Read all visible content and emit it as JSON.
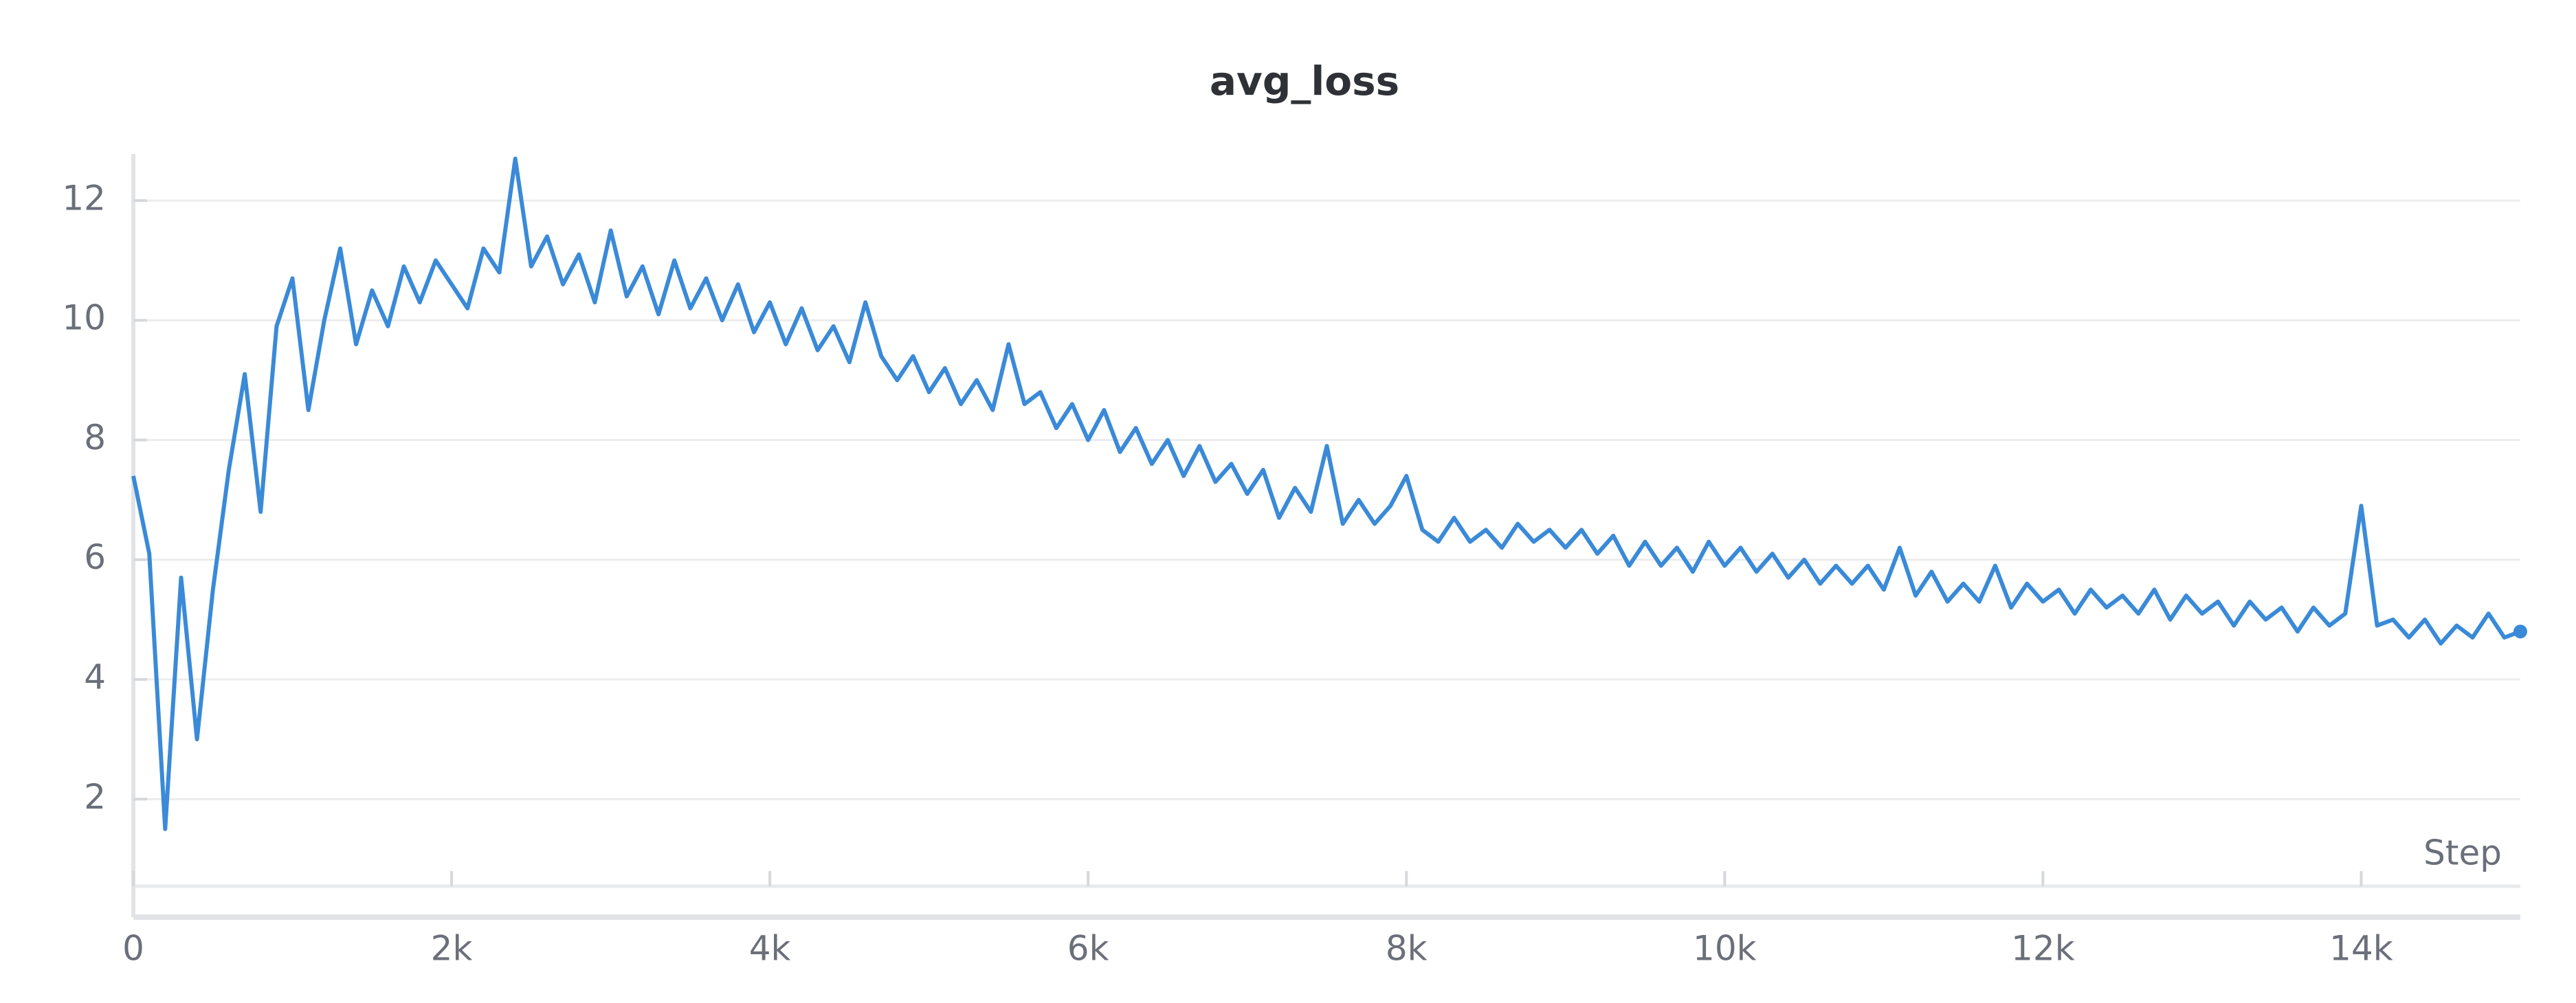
{
  "chart_data": {
    "type": "line",
    "title": "avg_loss",
    "x_label": "Step",
    "x": [
      0,
      100,
      200,
      300,
      400,
      500,
      600,
      700,
      800,
      900,
      1000,
      1100,
      1200,
      1300,
      1400,
      1500,
      1600,
      1700,
      1800,
      1900,
      2000,
      2100,
      2200,
      2300,
      2400,
      2500,
      2600,
      2700,
      2800,
      2900,
      3000,
      3100,
      3200,
      3300,
      3400,
      3500,
      3600,
      3700,
      3800,
      3900,
      4000,
      4100,
      4200,
      4300,
      4400,
      4500,
      4600,
      4700,
      4800,
      4900,
      5000,
      5100,
      5200,
      5300,
      5400,
      5500,
      5600,
      5700,
      5800,
      5900,
      6000,
      6100,
      6200,
      6300,
      6400,
      6500,
      6600,
      6700,
      6800,
      6900,
      7000,
      7100,
      7200,
      7300,
      7400,
      7500,
      7600,
      7700,
      7800,
      7900,
      8000,
      8100,
      8200,
      8300,
      8400,
      8500,
      8600,
      8700,
      8800,
      8900,
      9000,
      9100,
      9200,
      9300,
      9400,
      9500,
      9600,
      9700,
      9800,
      9900,
      10000,
      10100,
      10200,
      10300,
      10400,
      10500,
      10600,
      10700,
      10800,
      10900,
      11000,
      11100,
      11200,
      11300,
      11400,
      11500,
      11600,
      11700,
      11800,
      11900,
      12000,
      12100,
      12200,
      12300,
      12400,
      12500,
      12600,
      12700,
      12800,
      12900,
      13000,
      13100,
      13200,
      13300,
      13400,
      13500,
      13600,
      13700,
      13800,
      13900,
      14000,
      14100,
      14200,
      14300,
      14400,
      14500,
      14600,
      14700,
      14800,
      14900,
      15000
    ],
    "series": [
      {
        "name": "avg_loss",
        "color": "#3a8ad8",
        "values": [
          7.4,
          6.1,
          1.5,
          5.7,
          3.0,
          5.5,
          7.5,
          9.1,
          6.8,
          9.9,
          10.7,
          8.5,
          10.0,
          11.2,
          9.6,
          10.5,
          9.9,
          10.9,
          10.3,
          11.0,
          10.6,
          10.2,
          11.2,
          10.8,
          12.7,
          10.9,
          11.4,
          10.6,
          11.1,
          10.3,
          11.5,
          10.4,
          10.9,
          10.1,
          11.0,
          10.2,
          10.7,
          10.0,
          10.6,
          9.8,
          10.3,
          9.6,
          10.2,
          9.5,
          9.9,
          9.3,
          10.3,
          9.4,
          9.0,
          9.4,
          8.8,
          9.2,
          8.6,
          9.0,
          8.5,
          9.6,
          8.6,
          8.8,
          8.2,
          8.6,
          8.0,
          8.5,
          7.8,
          8.2,
          7.6,
          8.0,
          7.4,
          7.9,
          7.3,
          7.6,
          7.1,
          7.5,
          6.7,
          7.2,
          6.8,
          7.9,
          6.6,
          7.0,
          6.6,
          6.9,
          7.4,
          6.5,
          6.3,
          6.7,
          6.3,
          6.5,
          6.2,
          6.6,
          6.3,
          6.5,
          6.2,
          6.5,
          6.1,
          6.4,
          5.9,
          6.3,
          5.9,
          6.2,
          5.8,
          6.3,
          5.9,
          6.2,
          5.8,
          6.1,
          5.7,
          6.0,
          5.6,
          5.9,
          5.6,
          5.9,
          5.5,
          6.2,
          5.4,
          5.8,
          5.3,
          5.6,
          5.3,
          5.9,
          5.2,
          5.6,
          5.3,
          5.5,
          5.1,
          5.5,
          5.2,
          5.4,
          5.1,
          5.5,
          5.0,
          5.4,
          5.1,
          5.3,
          4.9,
          5.3,
          5.0,
          5.2,
          4.8,
          5.2,
          4.9,
          5.1,
          6.9,
          4.9,
          5.0,
          4.7,
          5.0,
          4.6,
          4.9,
          4.7,
          5.1,
          4.7,
          4.8
        ]
      }
    ],
    "xlim": [
      0,
      15000
    ],
    "ylim": [
      0.27,
      12.78
    ],
    "xticks": [
      0,
      {
        "value": 2000,
        "label": "2k"
      },
      {
        "value": 4000,
        "label": "4k"
      },
      {
        "value": 6000,
        "label": "6k"
      },
      {
        "value": 8000,
        "label": "8k"
      },
      {
        "value": 10000,
        "label": "10k"
      },
      {
        "value": 12000,
        "label": "12k"
      },
      {
        "value": 14000,
        "label": "14k"
      }
    ],
    "yticks": [
      2,
      4,
      6,
      8,
      10,
      12
    ],
    "grid": true
  }
}
